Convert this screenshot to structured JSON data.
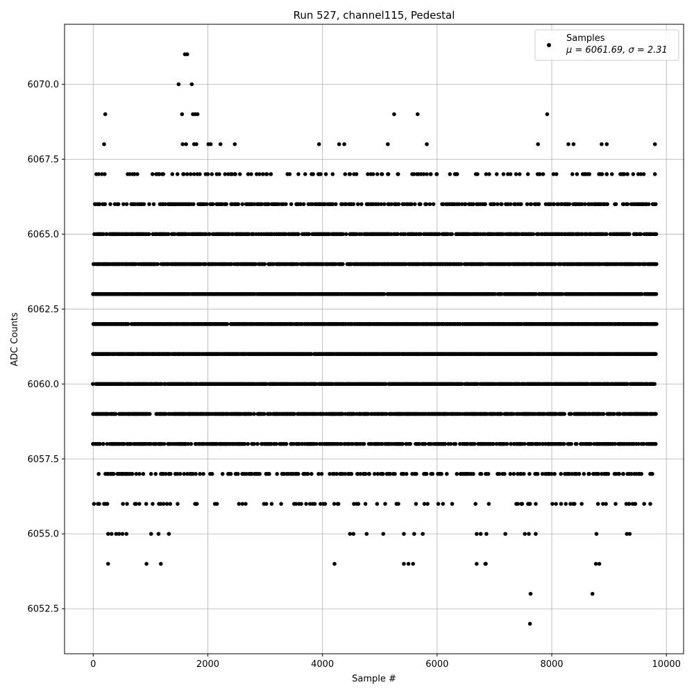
{
  "chart_data": {
    "type": "scatter",
    "title": "Run 527, channel115, Pedestal",
    "xlabel": "Sample #",
    "ylabel": "ADC Counts",
    "xlim": [
      -500,
      10300
    ],
    "ylim": [
      6051,
      6072
    ],
    "xticks": [
      0,
      2000,
      4000,
      6000,
      8000,
      10000
    ],
    "xtick_labels": [
      "0",
      "2000",
      "4000",
      "6000",
      "8000",
      "10000"
    ],
    "yticks": [
      6052.5,
      6055.0,
      6057.5,
      6060.0,
      6062.5,
      6065.0,
      6067.5,
      6070.0
    ],
    "ytick_labels": [
      "6052.5",
      "6055.0",
      "6057.5",
      "6060.0",
      "6062.5",
      "6065.0",
      "6067.5",
      "6070.0"
    ],
    "grid": true,
    "legend_position": "top-right",
    "marker_color": "#000000",
    "series": [
      {
        "name": "Samples",
        "legend_label": "μ = 6061.69, σ = 2.31",
        "x_range": [
          0,
          9840
        ],
        "level_density": {
          "6059": 0.7,
          "6060": 0.85,
          "6061": 0.95,
          "6062": 0.95,
          "6063": 0.9,
          "6064": 0.8,
          "6065": 0.65,
          "6058": 0.5,
          "6066": 0.4,
          "6057": 0.35,
          "6067": 0.12,
          "6056": 0.12
        },
        "sparse_points": [
          [
            260,
            6054
          ],
          [
            930,
            6054
          ],
          [
            1180,
            6054
          ],
          [
            4210,
            6054
          ],
          [
            5420,
            6054
          ],
          [
            5500,
            6054
          ],
          [
            5580,
            6054
          ],
          [
            6690,
            6054
          ],
          [
            6840,
            6054
          ],
          [
            6850,
            6054
          ],
          [
            8770,
            6054
          ],
          [
            8830,
            6054
          ],
          [
            260,
            6055
          ],
          [
            320,
            6055
          ],
          [
            400,
            6055
          ],
          [
            450,
            6055
          ],
          [
            510,
            6055
          ],
          [
            580,
            6055
          ],
          [
            1010,
            6055
          ],
          [
            1140,
            6055
          ],
          [
            1320,
            6055
          ],
          [
            4480,
            6055
          ],
          [
            4540,
            6055
          ],
          [
            4770,
            6055
          ],
          [
            5060,
            6055
          ],
          [
            5420,
            6055
          ],
          [
            5600,
            6055
          ],
          [
            5750,
            6055
          ],
          [
            6690,
            6055
          ],
          [
            6760,
            6055
          ],
          [
            6860,
            6055
          ],
          [
            7190,
            6055
          ],
          [
            7530,
            6055
          ],
          [
            7600,
            6055
          ],
          [
            7720,
            6055
          ],
          [
            8780,
            6055
          ],
          [
            9310,
            6055
          ],
          [
            9360,
            6055
          ],
          [
            7630,
            6053
          ],
          [
            8710,
            6053
          ],
          [
            7620,
            6052
          ],
          [
            200,
            6067
          ],
          [
            720,
            6067
          ],
          [
            770,
            6067
          ],
          [
            1380,
            6067
          ],
          [
            1470,
            6067
          ],
          [
            1580,
            6067
          ],
          [
            1640,
            6067
          ],
          [
            1700,
            6067
          ],
          [
            1760,
            6067
          ],
          [
            1860,
            6067
          ],
          [
            2000,
            6067
          ],
          [
            2070,
            6067
          ],
          [
            2200,
            6067
          ],
          [
            2300,
            6067
          ],
          [
            2420,
            6067
          ],
          [
            2480,
            6067
          ],
          [
            2560,
            6067
          ],
          [
            2900,
            6067
          ],
          [
            3020,
            6067
          ],
          [
            3100,
            6067
          ],
          [
            3580,
            6067
          ],
          [
            3810,
            6067
          ],
          [
            3940,
            6067
          ],
          [
            4060,
            6067
          ],
          [
            4480,
            6067
          ],
          [
            4550,
            6067
          ],
          [
            5150,
            6067
          ],
          [
            5320,
            6067
          ],
          [
            5650,
            6067
          ],
          [
            5720,
            6067
          ],
          [
            5820,
            6067
          ],
          [
            5890,
            6067
          ],
          [
            5990,
            6067
          ],
          [
            6320,
            6067
          ],
          [
            7040,
            6067
          ],
          [
            7280,
            6067
          ],
          [
            8030,
            6067
          ],
          [
            8360,
            6067
          ],
          [
            8440,
            6067
          ],
          [
            8570,
            6067
          ],
          [
            8860,
            6067
          ],
          [
            8960,
            6067
          ],
          [
            9050,
            6067
          ],
          [
            9250,
            6067
          ],
          [
            9320,
            6067
          ],
          [
            9420,
            6067
          ],
          [
            9800,
            6067
          ],
          [
            190,
            6068
          ],
          [
            1560,
            6068
          ],
          [
            1620,
            6068
          ],
          [
            1760,
            6068
          ],
          [
            1800,
            6068
          ],
          [
            2010,
            6068
          ],
          [
            2050,
            6068
          ],
          [
            2220,
            6068
          ],
          [
            2470,
            6068
          ],
          [
            3940,
            6068
          ],
          [
            4290,
            6068
          ],
          [
            4380,
            6068
          ],
          [
            5140,
            6068
          ],
          [
            5820,
            6068
          ],
          [
            7760,
            6068
          ],
          [
            8290,
            6068
          ],
          [
            8380,
            6068
          ],
          [
            8870,
            6068
          ],
          [
            8960,
            6068
          ],
          [
            9800,
            6068
          ],
          [
            210,
            6069
          ],
          [
            1550,
            6069
          ],
          [
            1740,
            6069
          ],
          [
            1780,
            6069
          ],
          [
            1820,
            6069
          ],
          [
            5250,
            6069
          ],
          [
            5660,
            6069
          ],
          [
            7920,
            6069
          ],
          [
            1490,
            6070
          ],
          [
            1720,
            6070
          ],
          [
            1600,
            6071
          ],
          [
            1640,
            6071
          ]
        ]
      }
    ]
  }
}
